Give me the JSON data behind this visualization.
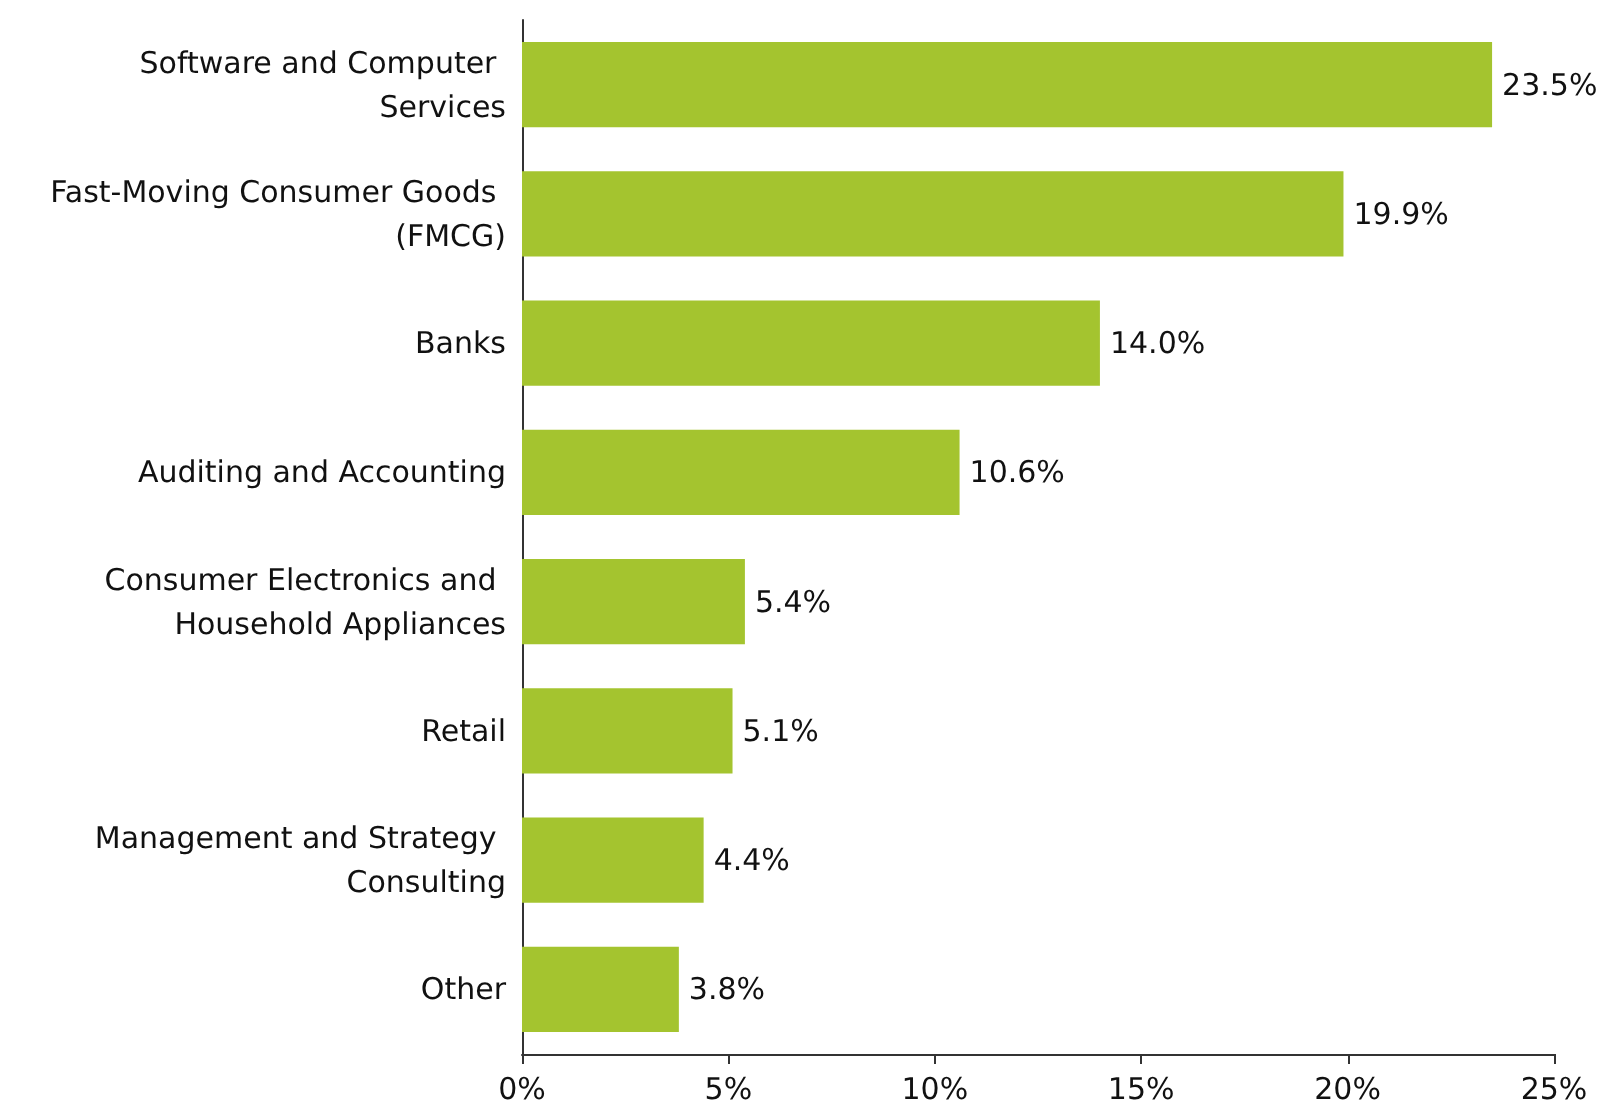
{
  "chart_data": {
    "type": "bar",
    "orientation": "horizontal",
    "categories": [
      "Software and Computer Services",
      "Fast-Moving Consumer Goods (FMCG)",
      "Banks",
      "Auditing and Accounting",
      "Consumer Electronics and Household Appliances",
      "Retail",
      "Management and Strategy Consulting",
      "Other"
    ],
    "values": [
      23.5,
      19.9,
      14.0,
      10.6,
      5.4,
      5.1,
      4.4,
      3.8
    ],
    "value_labels": [
      "23.5%",
      "19.9%",
      "14.0%",
      "10.6%",
      "5.4%",
      "5.1%",
      "4.4%",
      "3.8%"
    ],
    "color": "#a4c42f",
    "xlim": [
      0,
      25
    ],
    "xticks": [
      {
        "value": 0,
        "label": "0%"
      },
      {
        "value": 5,
        "label": "5%"
      },
      {
        "value": 10,
        "label": "10%"
      },
      {
        "value": 15,
        "label": "15%"
      },
      {
        "value": 20,
        "label": "20%"
      },
      {
        "value": 25,
        "label": "25%"
      }
    ],
    "grid": false
  }
}
